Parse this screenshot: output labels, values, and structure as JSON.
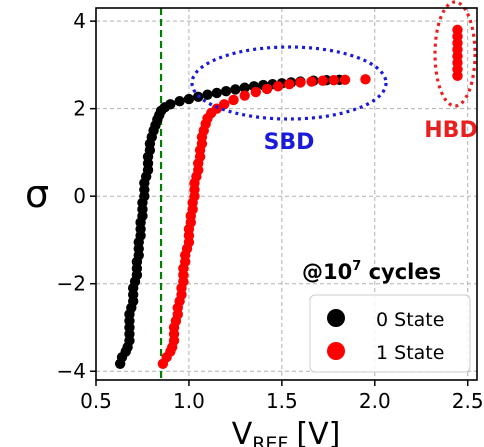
{
  "chart_data": {
    "type": "scatter",
    "xlabel": "V",
    "xlabel_sub": "REF",
    "xlabel_unit": "[V]",
    "ylabel": "σ",
    "xlim": [
      0.5,
      2.55
    ],
    "ylim": [
      -4.2,
      4.3
    ],
    "xticks": [
      {
        "value": 0.5,
        "label": "0.5"
      },
      {
        "value": 1.0,
        "label": "1.0"
      },
      {
        "value": 1.5,
        "label": "1.5"
      },
      {
        "value": 2.0,
        "label": "2.0"
      },
      {
        "value": 2.5,
        "label": "2.5"
      }
    ],
    "yticks": [
      {
        "value": 4,
        "label": "4"
      },
      {
        "value": 2,
        "label": "2"
      },
      {
        "value": 0,
        "label": "0"
      },
      {
        "value": -2,
        "label": "−2"
      },
      {
        "value": -4,
        "label": "−4"
      }
    ],
    "grid": true,
    "vline": {
      "x": 0.85,
      "color": "#008000"
    },
    "legend_placement": "bottom-right",
    "condition_label": "@10",
    "condition_sup": "7",
    "condition_suffix": " cycles",
    "annotations": [
      {
        "label": "SBD",
        "color": "#1a1adb"
      },
      {
        "label": "HBD",
        "color": "#e82020"
      }
    ],
    "series": [
      {
        "name": "0 State",
        "color": "#000000",
        "points": [
          [
            0.63,
            -3.83
          ],
          [
            0.64,
            -3.68
          ],
          [
            0.66,
            -3.55
          ],
          [
            0.67,
            -3.45
          ],
          [
            0.68,
            -3.3
          ],
          [
            0.68,
            -3.15
          ],
          [
            0.68,
            -3.0
          ],
          [
            0.68,
            -2.85
          ],
          [
            0.68,
            -2.7
          ],
          [
            0.69,
            -2.55
          ],
          [
            0.7,
            -2.4
          ],
          [
            0.7,
            -2.25
          ],
          [
            0.7,
            -2.1
          ],
          [
            0.71,
            -1.95
          ],
          [
            0.72,
            -1.8
          ],
          [
            0.72,
            -1.65
          ],
          [
            0.72,
            -1.5
          ],
          [
            0.73,
            -1.35
          ],
          [
            0.73,
            -1.2
          ],
          [
            0.73,
            -1.05
          ],
          [
            0.74,
            -0.9
          ],
          [
            0.74,
            -0.75
          ],
          [
            0.74,
            -0.6
          ],
          [
            0.75,
            -0.45
          ],
          [
            0.75,
            -0.3
          ],
          [
            0.75,
            -0.15
          ],
          [
            0.76,
            0.0
          ],
          [
            0.76,
            0.15
          ],
          [
            0.76,
            0.3
          ],
          [
            0.77,
            0.45
          ],
          [
            0.78,
            0.6
          ],
          [
            0.78,
            0.75
          ],
          [
            0.78,
            0.9
          ],
          [
            0.79,
            1.05
          ],
          [
            0.79,
            1.2
          ],
          [
            0.8,
            1.35
          ],
          [
            0.81,
            1.5
          ],
          [
            0.82,
            1.62
          ],
          [
            0.83,
            1.75
          ],
          [
            0.84,
            1.85
          ],
          [
            0.85,
            1.95
          ],
          [
            0.87,
            2.03
          ],
          [
            0.9,
            2.1
          ],
          [
            0.95,
            2.17
          ],
          [
            1.0,
            2.22
          ],
          [
            1.05,
            2.27
          ],
          [
            1.1,
            2.32
          ],
          [
            1.15,
            2.36
          ],
          [
            1.2,
            2.4
          ],
          [
            1.25,
            2.44
          ],
          [
            1.3,
            2.48
          ],
          [
            1.35,
            2.51
          ],
          [
            1.4,
            2.54
          ],
          [
            1.45,
            2.56
          ],
          [
            1.5,
            2.58
          ],
          [
            1.55,
            2.6
          ],
          [
            1.6,
            2.62
          ],
          [
            1.67,
            2.64
          ],
          [
            1.74,
            2.65
          ],
          [
            1.81,
            2.66
          ]
        ]
      },
      {
        "name": "1 State",
        "color": "#ff0000",
        "points": [
          [
            0.86,
            -3.83
          ],
          [
            0.88,
            -3.68
          ],
          [
            0.9,
            -3.55
          ],
          [
            0.91,
            -3.45
          ],
          [
            0.92,
            -3.3
          ],
          [
            0.92,
            -3.15
          ],
          [
            0.92,
            -3.0
          ],
          [
            0.93,
            -2.85
          ],
          [
            0.94,
            -2.7
          ],
          [
            0.94,
            -2.55
          ],
          [
            0.95,
            -2.4
          ],
          [
            0.96,
            -2.25
          ],
          [
            0.96,
            -2.1
          ],
          [
            0.97,
            -1.95
          ],
          [
            0.97,
            -1.8
          ],
          [
            0.97,
            -1.65
          ],
          [
            0.98,
            -1.5
          ],
          [
            0.98,
            -1.35
          ],
          [
            0.99,
            -1.2
          ],
          [
            1.0,
            -1.05
          ],
          [
            1.0,
            -0.9
          ],
          [
            1.0,
            -0.75
          ],
          [
            1.01,
            -0.6
          ],
          [
            1.01,
            -0.45
          ],
          [
            1.02,
            -0.3
          ],
          [
            1.02,
            -0.15
          ],
          [
            1.03,
            0.0
          ],
          [
            1.03,
            0.15
          ],
          [
            1.03,
            0.3
          ],
          [
            1.04,
            0.45
          ],
          [
            1.05,
            0.6
          ],
          [
            1.05,
            0.75
          ],
          [
            1.06,
            0.9
          ],
          [
            1.06,
            1.05
          ],
          [
            1.07,
            1.2
          ],
          [
            1.07,
            1.35
          ],
          [
            1.08,
            1.5
          ],
          [
            1.09,
            1.65
          ],
          [
            1.1,
            1.78
          ],
          [
            1.12,
            1.9
          ],
          [
            1.15,
            2.0
          ],
          [
            1.19,
            2.1
          ],
          [
            1.24,
            2.2
          ],
          [
            1.3,
            2.3
          ],
          [
            1.36,
            2.38
          ],
          [
            1.42,
            2.45
          ],
          [
            1.48,
            2.51
          ],
          [
            1.54,
            2.56
          ],
          [
            1.6,
            2.6
          ],
          [
            1.66,
            2.62
          ],
          [
            1.72,
            2.64
          ],
          [
            1.78,
            2.65
          ],
          [
            1.84,
            2.66
          ],
          [
            1.95,
            2.67
          ],
          [
            2.445,
            2.75
          ],
          [
            2.445,
            2.9
          ],
          [
            2.445,
            3.05
          ],
          [
            2.445,
            3.2
          ],
          [
            2.445,
            3.35
          ],
          [
            2.445,
            3.5
          ],
          [
            2.445,
            3.65
          ],
          [
            2.445,
            3.8
          ]
        ]
      }
    ]
  }
}
